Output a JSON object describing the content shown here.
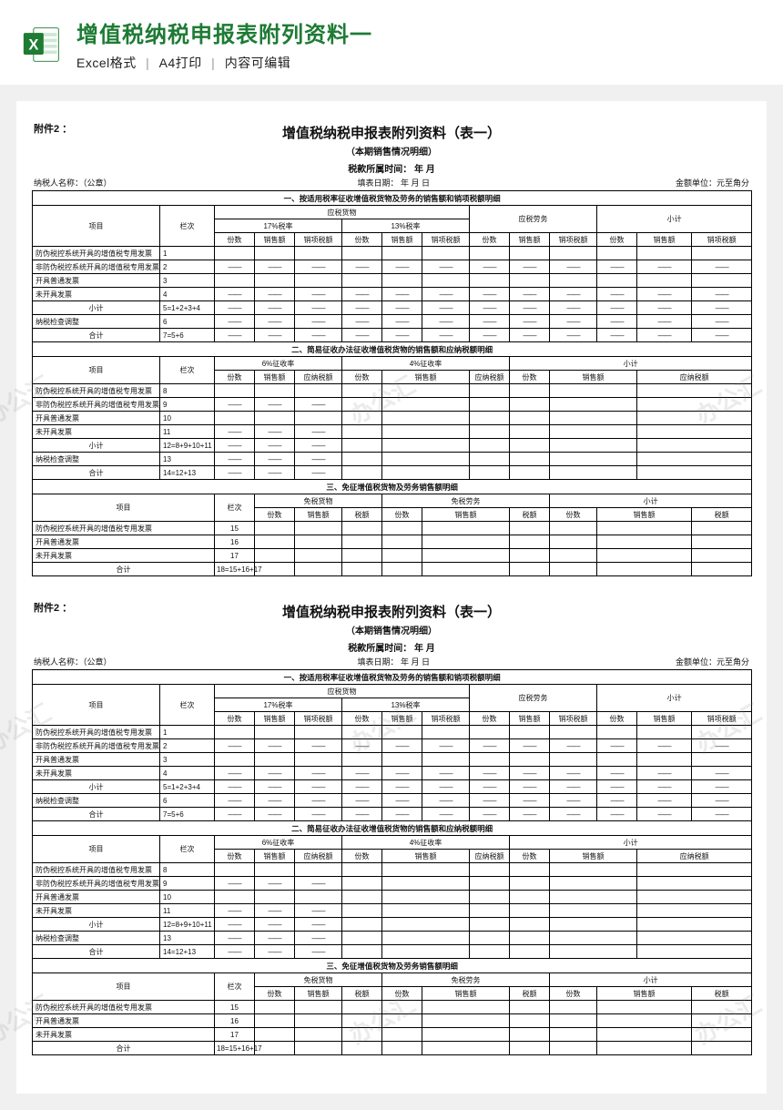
{
  "header": {
    "title": "增值税纳税申报表附列资料一",
    "format": "Excel格式",
    "print": "A4打印",
    "editable": "内容可编辑"
  },
  "watermark": "办公汇",
  "sheet": {
    "attach_label": "附件2 ：",
    "title": "增值税纳税申报表附列资料（表一）",
    "subtitle": "（本期销售情况明细）",
    "period_label": "税款所属时间：     年      月",
    "taxpayer_label": "纳税人名称：（公章）",
    "fill_date": "填表日期：     年   月  日",
    "unit_label": "金额单位：元至角分",
    "sec1_title": "一、按适用税率征收增值税货物及劳务的销售额和销项税额明细",
    "col_project": "项目",
    "col_lanci": "栏次",
    "g_goods": "应税货物",
    "g_services": "应税劳务",
    "g_subtotal": "小计",
    "rate17": "17%税率",
    "rate13": "13%税率",
    "c_fen": "份数",
    "c_sales": "销售额",
    "c_outtax": "销项税额",
    "s1_rows": [
      {
        "label": "防伪税控系统开具的增值税专用发票",
        "lan": "1",
        "dash": false
      },
      {
        "label": "非防伪税控系统开具的增值税专用发票",
        "lan": "2",
        "dash": true
      },
      {
        "label": "开具普通发票",
        "lan": "3",
        "dash": false
      },
      {
        "label": "未开具发票",
        "lan": "4",
        "dash": true
      },
      {
        "label": "小计",
        "lan": "5=1+2+3+4",
        "dash": true,
        "indent": true
      },
      {
        "label": "纳税检查调整",
        "lan": "6",
        "dash": true
      },
      {
        "label": "合计",
        "lan": "7=5+6",
        "dash": true,
        "indent": true
      }
    ],
    "sec2_title": "二、简易征收办法征收增值税货物的销售额和应纳税额明细",
    "rate6": "6%征收率",
    "rate4": "4%征收率",
    "c_paytax": "应纳税额",
    "s2_rows": [
      {
        "label": "防伪税控系统开具的增值税专用发票",
        "lan": "8",
        "dash": false
      },
      {
        "label": "非防伪税控系统开具的增值税专用发票",
        "lan": "9",
        "dash": true
      },
      {
        "label": "开具普通发票",
        "lan": "10",
        "dash": false
      },
      {
        "label": "未开具发票",
        "lan": "11",
        "dash": true
      },
      {
        "label": "小计",
        "lan": "12=8+9+10+11",
        "dash": true,
        "indent": true
      },
      {
        "label": "纳税检查调整",
        "lan": "13",
        "dash": true
      },
      {
        "label": "合计",
        "lan": "14=12+13",
        "dash": true,
        "indent": true
      }
    ],
    "sec3_title": "三、免征增值税货物及劳务销售额明细",
    "g_exgoods": "免税货物",
    "g_exserv": "免税劳务",
    "c_tax": "税额",
    "s3_rows": [
      {
        "label": "防伪税控系统开具的增值税专用发票",
        "lan": "15"
      },
      {
        "label": "开具普通发票",
        "lan": "16"
      },
      {
        "label": "未开具发票",
        "lan": "17"
      },
      {
        "label": "合计",
        "lan": "18=15+16+17",
        "indent": true
      }
    ]
  }
}
